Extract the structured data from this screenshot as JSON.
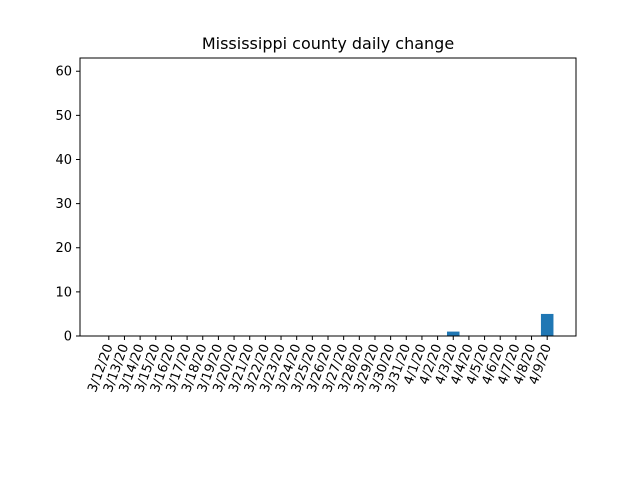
{
  "chart_data": {
    "type": "bar",
    "title": "Mississippi county daily change",
    "xlabel": "",
    "ylabel": "",
    "categories": [
      "3/12/20",
      "3/13/20",
      "3/14/20",
      "3/15/20",
      "3/16/20",
      "3/17/20",
      "3/18/20",
      "3/19/20",
      "3/20/20",
      "3/21/20",
      "3/22/20",
      "3/23/20",
      "3/24/20",
      "3/25/20",
      "3/26/20",
      "3/27/20",
      "3/28/20",
      "3/29/20",
      "3/30/20",
      "3/31/20",
      "4/1/20",
      "4/2/20",
      "4/3/20",
      "4/4/20",
      "4/5/20",
      "4/6/20",
      "4/7/20",
      "4/8/20",
      "4/9/20"
    ],
    "values": [
      0,
      0,
      0,
      0,
      0,
      0,
      0,
      0,
      0,
      0,
      0,
      0,
      0,
      0,
      0,
      0,
      0,
      0,
      0,
      0,
      0,
      0,
      1,
      0,
      0,
      0,
      0,
      0,
      5
    ],
    "ylim": [
      0,
      63
    ],
    "yticks": [
      0,
      10,
      20,
      30,
      40,
      50,
      60
    ],
    "grid": false,
    "bar_color": "#1f77b4"
  }
}
